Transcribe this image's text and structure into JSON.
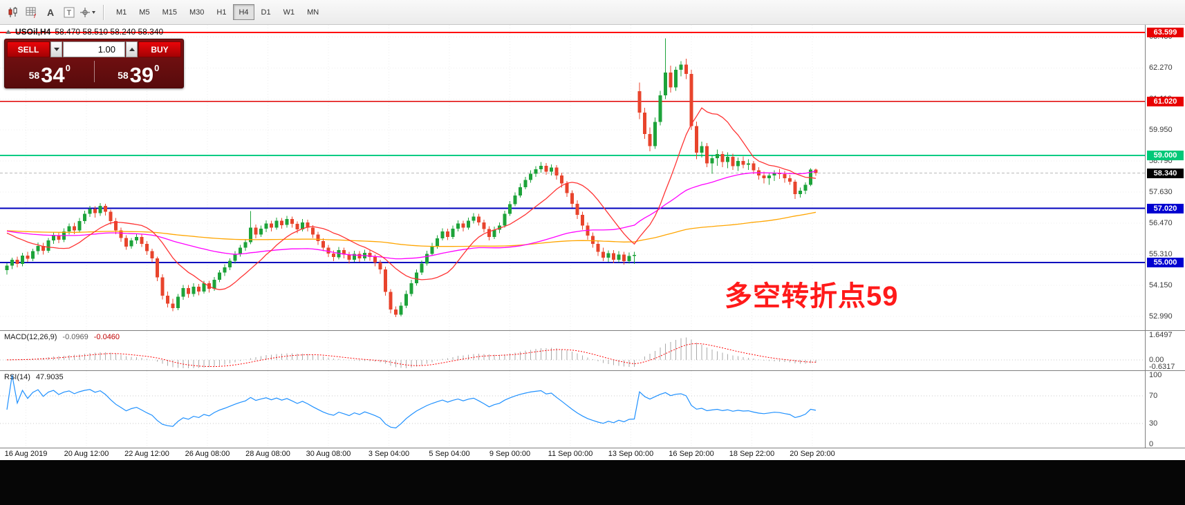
{
  "toolbar": {
    "icons": [
      {
        "name": "candlestick-chart-icon",
        "glyph": ""
      },
      {
        "name": "indicators-grid-icon",
        "glyph": "f"
      },
      {
        "name": "font-a-icon",
        "glyph": "A"
      },
      {
        "name": "text-tool-icon",
        "glyph": "T"
      },
      {
        "name": "crosshair-tool-icon",
        "glyph": ""
      }
    ],
    "timeframes": [
      "M1",
      "M5",
      "M15",
      "M30",
      "H1",
      "H4",
      "D1",
      "W1",
      "MN"
    ],
    "active_timeframe": "H4"
  },
  "symbol_header": {
    "symbol": "USOil,H4",
    "ohlc": "58.470 58.510 58.240 58.340"
  },
  "trade_panel": {
    "sell_label": "SELL",
    "buy_label": "BUY",
    "volume": "1.00",
    "sell_price": {
      "small": "58",
      "big": "34",
      "sup": "0"
    },
    "buy_price": {
      "small": "58",
      "big": "39",
      "sup": "0"
    }
  },
  "annotation": {
    "text": "多空转折点59",
    "color": "#FF1A1A"
  },
  "price_axis": {
    "ticks": [
      63.43,
      62.27,
      61.11,
      59.95,
      58.79,
      57.63,
      56.47,
      55.31,
      54.15,
      52.99
    ],
    "badges": [
      {
        "value": "63.599",
        "price": 63.599,
        "bg": "#E80000",
        "fg": "#ffffff"
      },
      {
        "value": "61.020",
        "price": 61.02,
        "bg": "#E80000",
        "fg": "#ffffff"
      },
      {
        "value": "59.000",
        "price": 59.0,
        "bg": "#00C878",
        "fg": "#ffffff"
      },
      {
        "value": "58.340",
        "price": 58.34,
        "bg": "#000000",
        "fg": "#ffffff"
      },
      {
        "value": "57.020",
        "price": 57.02,
        "bg": "#0000D0",
        "fg": "#ffffff"
      },
      {
        "value": "55.000",
        "price": 55.0,
        "bg": "#0000D0",
        "fg": "#ffffff"
      }
    ]
  },
  "levels": [
    {
      "price": 63.599,
      "color": "#FF0000",
      "width": 2
    },
    {
      "price": 61.02,
      "color": "#E00000",
      "width": 1.6
    },
    {
      "price": 59.0,
      "color": "#00CC84",
      "width": 2
    },
    {
      "price": 57.02,
      "color": "#0000BE",
      "width": 2
    },
    {
      "price": 55.0,
      "color": "#0000BE",
      "width": 2
    }
  ],
  "chart_data": {
    "type": "candlestick",
    "symbol": "USOil",
    "timeframe": "H4",
    "current_price": 58.34,
    "price_range": [
      52.47,
      63.88
    ],
    "colors": {
      "up": "#1DA33A",
      "down": "#E8442C",
      "ma_fast": "#FF3333",
      "ma_mid": "#FF00FF",
      "ma_slow": "#FFA500"
    },
    "ma_periods": {
      "fast": 13,
      "mid": 45,
      "slow": 120
    },
    "candles": [
      [
        54.72,
        54.98,
        54.55,
        54.88
      ],
      [
        54.88,
        55.18,
        54.76,
        55.1
      ],
      [
        55.1,
        55.22,
        54.82,
        54.95
      ],
      [
        54.95,
        55.36,
        54.86,
        55.26
      ],
      [
        55.26,
        55.4,
        55.02,
        55.14
      ],
      [
        55.14,
        55.52,
        55.05,
        55.42
      ],
      [
        55.42,
        55.75,
        55.3,
        55.62
      ],
      [
        55.62,
        55.74,
        55.3,
        55.44
      ],
      [
        55.44,
        55.92,
        55.36,
        55.82
      ],
      [
        55.82,
        56.12,
        55.7,
        56.02
      ],
      [
        56.02,
        56.14,
        55.72,
        55.85
      ],
      [
        55.85,
        56.28,
        55.76,
        56.16
      ],
      [
        56.16,
        56.46,
        56.04,
        56.35
      ],
      [
        56.35,
        56.48,
        56.06,
        56.2
      ],
      [
        56.2,
        56.66,
        56.12,
        56.55
      ],
      [
        56.55,
        56.94,
        56.44,
        56.82
      ],
      [
        56.82,
        57.12,
        56.7,
        57.0
      ],
      [
        57.0,
        57.1,
        56.68,
        56.84
      ],
      [
        56.84,
        57.22,
        56.74,
        57.12
      ],
      [
        57.12,
        57.2,
        56.76,
        56.9
      ],
      [
        56.9,
        56.98,
        56.42,
        56.55
      ],
      [
        56.55,
        56.66,
        56.06,
        56.2
      ],
      [
        56.2,
        56.3,
        55.78,
        55.92
      ],
      [
        55.92,
        56.02,
        55.48,
        55.6
      ],
      [
        55.6,
        55.92,
        55.52,
        55.82
      ],
      [
        55.82,
        56.06,
        55.7,
        55.95
      ],
      [
        55.95,
        56.04,
        55.58,
        55.7
      ],
      [
        55.7,
        55.8,
        55.28,
        55.42
      ],
      [
        55.42,
        55.52,
        55.0,
        55.15
      ],
      [
        55.15,
        55.22,
        54.3,
        54.45
      ],
      [
        54.45,
        54.56,
        53.62,
        53.76
      ],
      [
        53.76,
        53.92,
        53.32,
        53.46
      ],
      [
        53.46,
        53.64,
        53.18,
        53.3
      ],
      [
        53.3,
        53.82,
        53.22,
        53.72
      ],
      [
        53.72,
        54.16,
        53.6,
        54.05
      ],
      [
        54.05,
        54.16,
        53.68,
        53.82
      ],
      [
        53.82,
        54.22,
        53.72,
        54.1
      ],
      [
        54.1,
        54.2,
        53.78,
        53.92
      ],
      [
        53.92,
        54.32,
        53.84,
        54.22
      ],
      [
        54.22,
        54.32,
        53.88,
        54.02
      ],
      [
        54.02,
        54.46,
        53.94,
        54.36
      ],
      [
        54.36,
        54.72,
        54.26,
        54.62
      ],
      [
        54.62,
        54.94,
        54.5,
        54.82
      ],
      [
        54.82,
        55.16,
        54.72,
        55.06
      ],
      [
        55.06,
        55.42,
        54.96,
        55.32
      ],
      [
        55.32,
        55.66,
        55.22,
        55.56
      ],
      [
        55.56,
        55.88,
        55.44,
        55.76
      ],
      [
        55.76,
        56.92,
        55.68,
        56.3
      ],
      [
        56.3,
        56.42,
        55.9,
        56.05
      ],
      [
        56.05,
        56.38,
        55.96,
        56.26
      ],
      [
        56.26,
        56.58,
        56.14,
        56.46
      ],
      [
        56.46,
        56.56,
        56.16,
        56.3
      ],
      [
        56.3,
        56.68,
        56.22,
        56.56
      ],
      [
        56.56,
        56.66,
        56.26,
        56.4
      ],
      [
        56.4,
        56.74,
        56.3,
        56.62
      ],
      [
        56.62,
        56.72,
        56.3,
        56.44
      ],
      [
        56.44,
        56.54,
        56.1,
        56.24
      ],
      [
        56.24,
        56.62,
        56.16,
        56.5
      ],
      [
        56.5,
        56.6,
        56.16,
        56.3
      ],
      [
        56.3,
        56.4,
        55.92,
        56.05
      ],
      [
        56.05,
        56.15,
        55.66,
        55.8
      ],
      [
        55.8,
        55.9,
        55.42,
        55.55
      ],
      [
        55.55,
        55.66,
        55.2,
        55.34
      ],
      [
        55.34,
        55.45,
        55.05,
        55.2
      ],
      [
        55.2,
        55.58,
        55.12,
        55.46
      ],
      [
        55.46,
        55.56,
        55.16,
        55.3
      ],
      [
        55.3,
        55.4,
        54.96,
        55.1
      ],
      [
        55.1,
        55.44,
        55.02,
        55.32
      ],
      [
        55.32,
        55.42,
        55.02,
        55.15
      ],
      [
        55.15,
        55.48,
        55.06,
        55.36
      ],
      [
        55.36,
        55.46,
        55.06,
        55.2
      ],
      [
        55.2,
        55.3,
        54.86,
        55.0
      ],
      [
        55.0,
        55.1,
        54.58,
        54.74
      ],
      [
        54.74,
        54.84,
        53.76,
        53.9
      ],
      [
        53.9,
        54.0,
        53.1,
        53.25
      ],
      [
        53.25,
        53.36,
        52.96,
        53.05
      ],
      [
        53.05,
        53.52,
        52.98,
        53.38
      ],
      [
        53.38,
        53.95,
        53.3,
        53.82
      ],
      [
        53.82,
        54.35,
        53.74,
        54.22
      ],
      [
        54.22,
        54.74,
        54.14,
        54.62
      ],
      [
        54.62,
        55.08,
        54.54,
        54.96
      ],
      [
        54.96,
        55.44,
        54.88,
        55.32
      ],
      [
        55.32,
        55.74,
        55.24,
        55.62
      ],
      [
        55.62,
        56.02,
        55.52,
        55.9
      ],
      [
        55.9,
        56.28,
        55.82,
        56.16
      ],
      [
        56.16,
        56.26,
        55.84,
        55.96
      ],
      [
        55.96,
        56.38,
        55.88,
        56.26
      ],
      [
        56.26,
        56.58,
        56.16,
        56.46
      ],
      [
        56.46,
        56.56,
        56.16,
        56.3
      ],
      [
        56.3,
        56.68,
        56.22,
        56.56
      ],
      [
        56.56,
        56.84,
        56.46,
        56.72
      ],
      [
        56.72,
        56.82,
        56.38,
        56.5
      ],
      [
        56.5,
        56.6,
        56.12,
        56.25
      ],
      [
        56.25,
        56.35,
        55.82,
        55.96
      ],
      [
        55.96,
        56.34,
        55.88,
        56.22
      ],
      [
        56.22,
        56.5,
        56.1,
        56.38
      ],
      [
        56.38,
        56.94,
        56.3,
        56.82
      ],
      [
        56.82,
        57.3,
        56.74,
        57.18
      ],
      [
        57.18,
        57.62,
        57.1,
        57.5
      ],
      [
        57.5,
        57.95,
        57.42,
        57.82
      ],
      [
        57.82,
        58.2,
        57.74,
        58.08
      ],
      [
        58.08,
        58.45,
        57.98,
        58.32
      ],
      [
        58.32,
        58.6,
        58.2,
        58.48
      ],
      [
        58.48,
        58.76,
        58.36,
        58.62
      ],
      [
        58.62,
        58.72,
        58.28,
        58.4
      ],
      [
        58.4,
        58.66,
        58.25,
        58.55
      ],
      [
        58.55,
        58.64,
        58.1,
        58.25
      ],
      [
        58.25,
        58.35,
        57.8,
        57.95
      ],
      [
        57.95,
        58.05,
        57.45,
        57.6
      ],
      [
        57.6,
        57.7,
        57.05,
        57.2
      ],
      [
        57.2,
        57.32,
        56.62,
        56.78
      ],
      [
        56.78,
        56.9,
        56.22,
        56.38
      ],
      [
        56.38,
        56.5,
        55.85,
        56.0
      ],
      [
        56.0,
        56.12,
        55.55,
        55.7
      ],
      [
        55.7,
        55.82,
        55.25,
        55.4
      ],
      [
        55.4,
        55.55,
        55.05,
        55.18
      ],
      [
        55.18,
        55.45,
        55.02,
        55.35
      ],
      [
        55.35,
        55.46,
        54.98,
        55.1
      ],
      [
        55.1,
        55.42,
        55.0,
        55.3
      ],
      [
        55.3,
        55.4,
        54.92,
        55.05
      ],
      [
        55.05,
        55.38,
        54.96,
        55.25
      ],
      [
        55.25,
        55.4,
        54.95,
        55.28
      ],
      [
        61.4,
        61.72,
        60.35,
        60.6
      ],
      [
        60.6,
        60.78,
        59.62,
        59.8
      ],
      [
        59.8,
        60.05,
        59.15,
        59.35
      ],
      [
        59.35,
        60.42,
        59.25,
        60.25
      ],
      [
        60.25,
        61.42,
        60.12,
        61.25
      ],
      [
        61.25,
        63.38,
        61.1,
        62.1
      ],
      [
        62.1,
        62.36,
        61.35,
        61.55
      ],
      [
        61.55,
        62.32,
        61.42,
        62.2
      ],
      [
        62.2,
        62.52,
        61.96,
        62.4
      ],
      [
        62.4,
        62.62,
        61.86,
        62.05
      ],
      [
        62.05,
        62.2,
        59.95,
        60.1
      ],
      [
        60.1,
        60.26,
        58.86,
        59.1
      ],
      [
        59.1,
        59.52,
        58.92,
        59.35
      ],
      [
        59.35,
        59.46,
        58.56,
        58.7
      ],
      [
        58.7,
        59.02,
        58.32,
        58.9
      ],
      [
        58.9,
        59.22,
        58.62,
        59.05
      ],
      [
        59.05,
        59.16,
        58.56,
        58.75
      ],
      [
        58.75,
        59.12,
        58.52,
        58.95
      ],
      [
        58.95,
        59.06,
        58.46,
        58.6
      ],
      [
        58.6,
        58.92,
        58.42,
        58.8
      ],
      [
        58.8,
        58.96,
        58.52,
        58.65
      ],
      [
        58.65,
        58.86,
        58.46,
        58.7
      ],
      [
        58.7,
        58.8,
        58.3,
        58.45
      ],
      [
        58.45,
        58.56,
        58.1,
        58.25
      ],
      [
        58.25,
        58.4,
        57.95,
        58.15
      ],
      [
        58.15,
        58.35,
        57.9,
        58.25
      ],
      [
        58.25,
        58.45,
        58.05,
        58.35
      ],
      [
        58.35,
        58.5,
        58.12,
        58.3
      ],
      [
        58.3,
        58.42,
        57.98,
        58.15
      ],
      [
        58.15,
        58.28,
        57.9,
        58.02
      ],
      [
        58.02,
        58.1,
        57.38,
        57.55
      ],
      [
        57.55,
        57.8,
        57.42,
        57.68
      ],
      [
        57.68,
        58.0,
        57.55,
        57.9
      ],
      [
        57.9,
        58.52,
        57.85,
        58.47
      ],
      [
        58.47,
        58.51,
        58.24,
        58.34
      ]
    ]
  },
  "macd_panel": {
    "label": "MACD(12,26,9)",
    "value_main": "-0.0969",
    "value_signal": "-0.0460",
    "axis": [
      {
        "v": 1.6497,
        "label": "1.6497"
      },
      {
        "v": 0,
        "label": "0.00"
      },
      {
        "v": -0.6317,
        "label": "-0.6317"
      }
    ],
    "range": [
      -0.75,
      1.95
    ]
  },
  "rsi_panel": {
    "label": "RSI(14)",
    "value": "47.9035",
    "period": 14,
    "axis": [
      {
        "v": 100,
        "label": "100"
      },
      {
        "v": 70,
        "label": "70"
      },
      {
        "v": 30,
        "label": "30"
      },
      {
        "v": 0,
        "label": "0"
      }
    ],
    "levels": [
      70,
      30
    ]
  },
  "time_axis": {
    "labels": [
      "16 Aug 2019",
      "20 Aug 12:00",
      "22 Aug 12:00",
      "26 Aug 08:00",
      "28 Aug 08:00",
      "30 Aug 08:00",
      "3 Sep 04:00",
      "5 Sep 04:00",
      "9 Sep 00:00",
      "11 Sep 00:00",
      "13 Sep 00:00",
      "16 Sep 20:00",
      "18 Sep 22:00",
      "20 Sep 20:00"
    ]
  }
}
